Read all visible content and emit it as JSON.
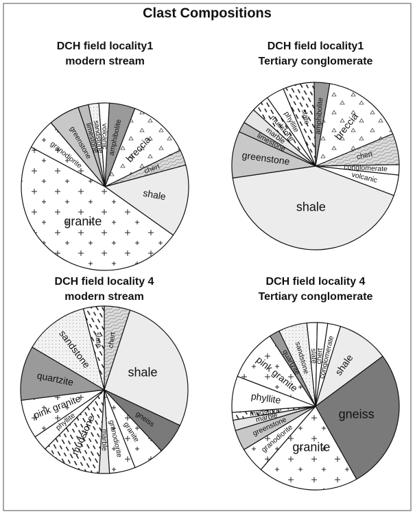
{
  "title": "Clast Compositions",
  "chart_data": [
    {
      "type": "pie",
      "title": "DCH field locality1",
      "subtitle": "modern stream",
      "categories": [
        "amphibolite",
        "breccia",
        "chert",
        "shale",
        "granite",
        "granodiorite",
        "greenstone",
        "limestone",
        "sandstone",
        "volcanic"
      ],
      "values": [
        5,
        12,
        3,
        14,
        48,
        6,
        6,
        2,
        2,
        2
      ],
      "colors": [
        "#9a9a9a",
        "#ffffff",
        "#dcdcdc",
        "#ececec",
        "#ffffff",
        "#ffffff",
        "#c8c8c8",
        "#bdbdbd",
        "#f2f2f2",
        "#ffffff"
      ],
      "patterns": [
        null,
        "tri",
        "wavy",
        null,
        "cross",
        "cross",
        null,
        null,
        "dots",
        null
      ]
    },
    {
      "type": "pie",
      "title": "DCH field locality1",
      "subtitle": "Tertiary conglomerate",
      "categories": [
        "amphibolite",
        "breccia",
        "chert",
        "conglomerate",
        "volcanic",
        "shale",
        "greenstone",
        "limestone",
        "marble",
        "mudstone",
        "phyllite",
        "slate"
      ],
      "values": [
        3,
        16,
        6,
        2,
        4,
        42,
        9,
        2,
        3,
        3.5,
        3.5,
        6
      ],
      "colors": [
        "#9a9a9a",
        "#ffffff",
        "#dcdcdc",
        "#ffffff",
        "#ffffff",
        "#ececec",
        "#c8c8c8",
        "#bdbdbd",
        "#e6e6e6",
        "#ffffff",
        "#ffffff",
        "#ffffff"
      ],
      "patterns": [
        null,
        "tri",
        "wavy",
        null,
        null,
        null,
        null,
        null,
        null,
        "dash",
        null,
        "dash"
      ]
    },
    {
      "type": "pie",
      "title": "DCH field locality 4",
      "subtitle": "modern stream",
      "categories": [
        "chert",
        "shale",
        "gneiss",
        "granite",
        "granodiorite",
        "marble",
        "mudstone",
        "phyllite",
        "pink granite",
        "quartzite",
        "sandstone",
        "slate"
      ],
      "values": [
        5,
        27,
        6,
        6,
        5,
        2,
        11.5,
        3,
        7.5,
        10.5,
        12.5,
        4
      ],
      "colors": [
        "#dcdcdc",
        "#ececec",
        "#7a7a7a",
        "#ffffff",
        "#ffffff",
        "#e6e6e6",
        "#ffffff",
        "#ffffff",
        "#ffffff",
        "#9a9a9a",
        "#f2f2f2",
        "#ffffff"
      ],
      "patterns": [
        "wavy",
        null,
        null,
        "cross",
        "cross",
        null,
        "dash",
        null,
        "cross",
        null,
        "dots",
        "dash"
      ]
    },
    {
      "type": "pie",
      "title": "DCH field locality 4",
      "subtitle": "Tertiary conglomerate",
      "categories": [
        "slate",
        "chert",
        "conglomerate",
        "shale",
        "gneiss",
        "granite",
        "granodiorite",
        "greenstone",
        "marble",
        "mudstone",
        "phyllite",
        "pink granite",
        "quartzite",
        "sandstone"
      ],
      "values": [
        2,
        2,
        2.5,
        10,
        27,
        19.5,
        5,
        4,
        2,
        1.5,
        7,
        10,
        2,
        5.5
      ],
      "colors": [
        "#ffffff",
        "#ffffff",
        "#ffffff",
        "#ececec",
        "#7a7a7a",
        "#ffffff",
        "#ffffff",
        "#c8c8c8",
        "#e6e6e6",
        "#ffffff",
        "#ffffff",
        "#ffffff",
        "#9a9a9a",
        "#f2f2f2"
      ],
      "patterns": [
        null,
        null,
        null,
        null,
        null,
        "cross",
        "cross",
        null,
        null,
        "dash",
        null,
        "cross",
        null,
        "dots"
      ]
    }
  ]
}
